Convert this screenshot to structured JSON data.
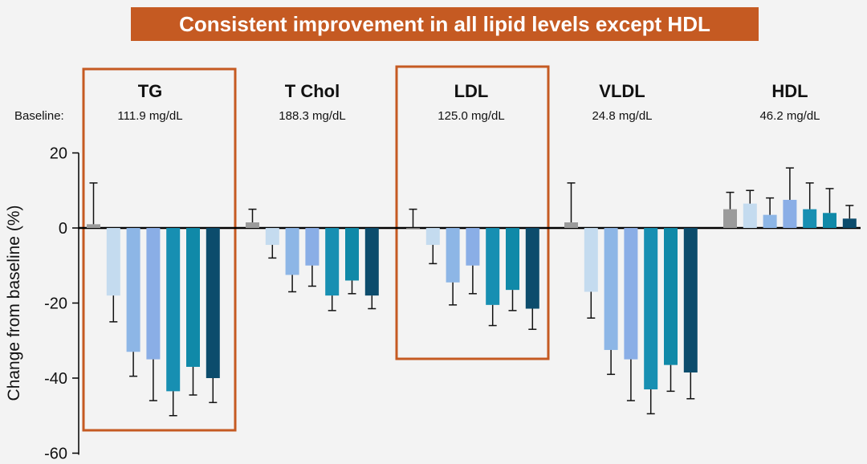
{
  "title": "Consistent improvement in all lipid levels except HDL",
  "baseline_label": "Baseline:",
  "colors": {
    "banner": "#c55a22",
    "highlight_box": "#c55a22",
    "bar_palette": [
      "#9b9b9b",
      "#c4dbef",
      "#8db6e6",
      "#8aaee6",
      "#178fb2",
      "#1089a8",
      "#0c4c6c"
    ]
  },
  "chart_data": {
    "type": "bar",
    "title": "Consistent improvement in all lipid levels except HDL",
    "ylabel": "Change from baseline (%)",
    "ylim": [
      -60,
      20
    ],
    "yticks": [
      20,
      0,
      -20,
      -40,
      -60
    ],
    "groups": [
      {
        "name": "TG",
        "baseline": "111.9 mg/dL",
        "highlighted": true,
        "values": [
          1,
          -18,
          -33,
          -35,
          -43.5,
          -37,
          -40
        ],
        "errors": [
          11,
          7,
          6.5,
          11,
          6.5,
          7.5,
          6.5
        ]
      },
      {
        "name": "T Chol",
        "baseline": "188.3 mg/dL",
        "highlighted": false,
        "values": [
          1.5,
          -4.5,
          -12.5,
          -10,
          -18,
          -14,
          -18
        ],
        "errors": [
          3.5,
          3.5,
          4.5,
          5.5,
          4,
          3.5,
          3.5
        ]
      },
      {
        "name": "LDL",
        "baseline": "125.0 mg/dL",
        "highlighted": true,
        "values": [
          0,
          -4.5,
          -14.5,
          -10,
          -20.5,
          -16.5,
          -21.5
        ],
        "errors": [
          5,
          5,
          6,
          7.5,
          5.5,
          5.5,
          5.5
        ]
      },
      {
        "name": "VLDL",
        "baseline": "24.8 mg/dL",
        "highlighted": false,
        "values": [
          1.5,
          -17,
          -32.5,
          -35,
          -43,
          -36.5,
          -38.5
        ],
        "errors": [
          10.5,
          7,
          6.5,
          11,
          6.5,
          7,
          7
        ]
      },
      {
        "name": "HDL",
        "baseline": "46.2 mg/dL",
        "highlighted": false,
        "values": [
          5,
          6.5,
          3.5,
          7.5,
          5,
          4,
          2.5
        ],
        "errors": [
          4.5,
          3.5,
          4.5,
          8.5,
          7,
          6.5,
          3.5
        ]
      }
    ]
  }
}
